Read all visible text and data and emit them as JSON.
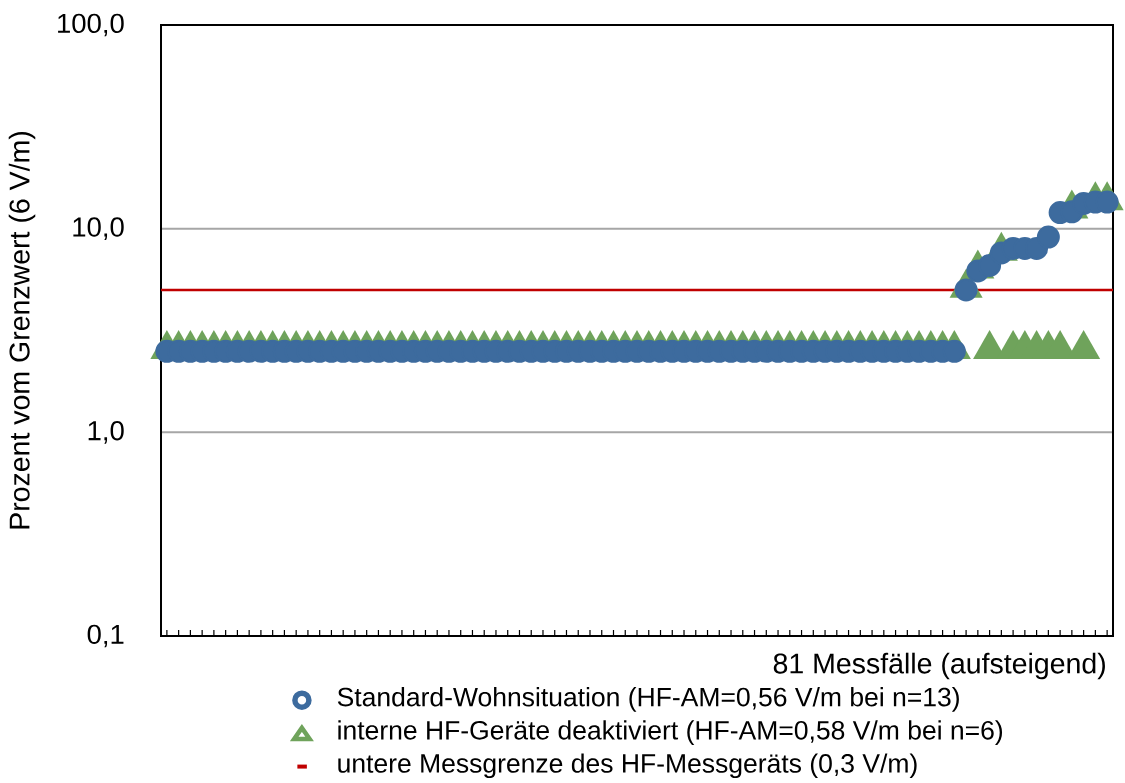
{
  "chart_data": {
    "type": "scatter",
    "xlabel": "81 Messfälle (aufsteigend)",
    "ylabel": "Prozent vom Grenzwert (6 V/m)",
    "categories": [
      null,
      null,
      null,
      null,
      null,
      null,
      null,
      null,
      null,
      null,
      null,
      null,
      null,
      null,
      null,
      null,
      null,
      null,
      null,
      null,
      null,
      null,
      null,
      null,
      null,
      null,
      null,
      null,
      null,
      null,
      null,
      null,
      null,
      null,
      null,
      null,
      null,
      null,
      null,
      null,
      null,
      null,
      null,
      null,
      null,
      null,
      null,
      null,
      null,
      null,
      null,
      null,
      null,
      null,
      null,
      null,
      null,
      null,
      null,
      null,
      null,
      null,
      null,
      null,
      null,
      null,
      null,
      null,
      null,
      null,
      null,
      null,
      null,
      null,
      null,
      null,
      null,
      null,
      null,
      null,
      null
    ],
    "series": [
      {
        "name": "Standard-Wohnsituation (HF-AM=0,56 V/m bei n=13)",
        "color": "#3d6b9e",
        "marker": "circle",
        "values": [
          2.5,
          2.5,
          2.5,
          2.5,
          2.5,
          2.5,
          2.5,
          2.5,
          2.5,
          2.5,
          2.5,
          2.5,
          2.5,
          2.5,
          2.5,
          2.5,
          2.5,
          2.5,
          2.5,
          2.5,
          2.5,
          2.5,
          2.5,
          2.5,
          2.5,
          2.5,
          2.5,
          2.5,
          2.5,
          2.5,
          2.5,
          2.5,
          2.5,
          2.5,
          2.5,
          2.5,
          2.5,
          2.5,
          2.5,
          2.5,
          2.5,
          2.5,
          2.5,
          2.5,
          2.5,
          2.5,
          2.5,
          2.5,
          2.5,
          2.5,
          2.5,
          2.5,
          2.5,
          2.5,
          2.5,
          2.5,
          2.5,
          2.5,
          2.5,
          2.5,
          2.5,
          2.5,
          2.5,
          2.5,
          2.5,
          2.5,
          2.5,
          2.5,
          5.0,
          6.2,
          6.6,
          7.6,
          8.0,
          8.0,
          8.0,
          9.1,
          12.0,
          12.1,
          13.3,
          13.5,
          13.5
        ]
      },
      {
        "name": "interne HF-Geräte deaktiviert (HF-AM=0,58 V/m bei n=6)",
        "color": "#6fa35b",
        "marker": "triangle",
        "values": [
          2.7,
          2.7,
          2.7,
          2.7,
          2.7,
          2.7,
          2.7,
          2.7,
          2.7,
          2.7,
          2.7,
          2.7,
          2.7,
          2.7,
          2.7,
          2.7,
          2.7,
          2.7,
          2.7,
          2.7,
          2.7,
          2.7,
          2.7,
          2.7,
          2.7,
          2.7,
          2.7,
          2.7,
          2.7,
          2.7,
          2.7,
          2.7,
          2.7,
          2.7,
          2.7,
          2.7,
          2.7,
          2.7,
          2.7,
          2.7,
          2.7,
          2.7,
          2.7,
          2.7,
          2.7,
          2.7,
          2.7,
          2.7,
          2.7,
          2.7,
          2.7,
          2.7,
          2.7,
          2.7,
          2.7,
          2.7,
          2.7,
          2.7,
          2.7,
          2.7,
          2.7,
          2.7,
          2.7,
          2.7,
          2.7,
          2.7,
          2.7,
          2.7,
          5.4,
          6.7,
          2.7,
          8.2,
          2.7,
          2.7,
          2.7,
          2.7,
          2.7,
          13.2,
          2.7,
          14.5,
          14.5
        ]
      }
    ],
    "log": "y",
    "ylim": [
      0.1,
      100
    ],
    "yticks": [
      {
        "value": 0.1,
        "label": "0,1"
      },
      {
        "value": 1,
        "label": "1,0"
      },
      {
        "value": 10,
        "label": "10,0"
      },
      {
        "value": 100,
        "label": "100,0"
      }
    ],
    "grid": "y",
    "ref_lines": [
      {
        "axis": "y",
        "value": 5,
        "label": "untere Messgrenze des HF-Messgeräts (0,3 V/m)",
        "color": "#c00000"
      }
    ],
    "legend": "bottom"
  }
}
